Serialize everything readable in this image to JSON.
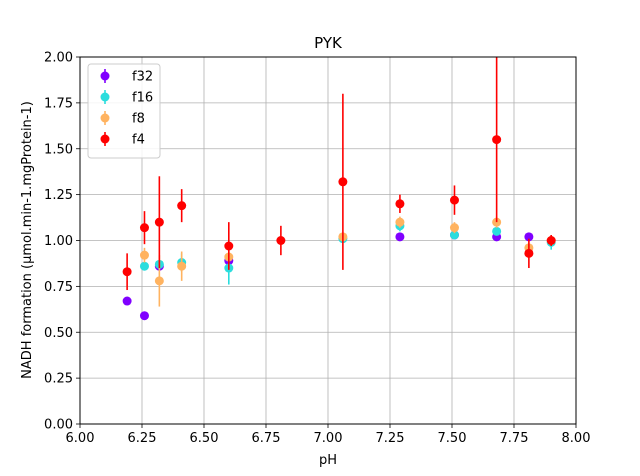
{
  "chart_data": {
    "type": "scatter",
    "title": "PYK",
    "xlabel": "pH",
    "ylabel": "NADH formation (µmol.min-1.mgProtein-1)",
    "xlim": [
      6.0,
      8.0
    ],
    "ylim": [
      0.0,
      2.0
    ],
    "xticks": [
      "6.00",
      "6.25",
      "6.50",
      "6.75",
      "7.00",
      "7.25",
      "7.50",
      "7.75",
      "8.00"
    ],
    "yticks": [
      "0.00",
      "0.25",
      "0.50",
      "0.75",
      "1.00",
      "1.25",
      "1.50",
      "1.75",
      "2.00"
    ],
    "grid": true,
    "legend_position": "upper-left",
    "series": [
      {
        "name": "f32",
        "color": "#8000ff",
        "points": [
          {
            "x": 6.19,
            "y": 0.67,
            "err": 0.0
          },
          {
            "x": 6.26,
            "y": 0.59,
            "err": 0.0
          },
          {
            "x": 6.32,
            "y": 0.86,
            "err": 0.0
          },
          {
            "x": 6.6,
            "y": 0.89,
            "err": 0.0
          },
          {
            "x": 7.29,
            "y": 1.02,
            "err": 0.0
          },
          {
            "x": 7.51,
            "y": 1.03,
            "err": 0.0
          },
          {
            "x": 7.68,
            "y": 1.02,
            "err": 0.0
          },
          {
            "x": 7.81,
            "y": 1.02,
            "err": 0.0
          }
        ]
      },
      {
        "name": "f16",
        "color": "#2adddd",
        "points": [
          {
            "x": 6.26,
            "y": 0.86,
            "err": 0.0
          },
          {
            "x": 6.32,
            "y": 0.87,
            "err": 0.0
          },
          {
            "x": 6.41,
            "y": 0.88,
            "err": 0.05
          },
          {
            "x": 6.6,
            "y": 0.85,
            "err": 0.09
          },
          {
            "x": 7.06,
            "y": 1.01,
            "err": 0.02
          },
          {
            "x": 7.29,
            "y": 1.08,
            "err": 0.03
          },
          {
            "x": 7.51,
            "y": 1.03,
            "err": 0.0
          },
          {
            "x": 7.68,
            "y": 1.05,
            "err": 0.02
          },
          {
            "x": 7.9,
            "y": 0.99,
            "err": 0.04
          }
        ]
      },
      {
        "name": "f8",
        "color": "#ffb360",
        "points": [
          {
            "x": 6.26,
            "y": 0.92,
            "err": 0.04
          },
          {
            "x": 6.32,
            "y": 0.78,
            "err": 0.14
          },
          {
            "x": 6.41,
            "y": 0.86,
            "err": 0.08
          },
          {
            "x": 6.6,
            "y": 0.91,
            "err": 0.02
          },
          {
            "x": 7.06,
            "y": 1.02,
            "err": 0.02
          },
          {
            "x": 7.29,
            "y": 1.1,
            "err": 0.03
          },
          {
            "x": 7.51,
            "y": 1.07,
            "err": 0.03
          },
          {
            "x": 7.68,
            "y": 1.1,
            "err": 0.03
          },
          {
            "x": 7.81,
            "y": 0.96,
            "err": 0.02
          },
          {
            "x": 7.9,
            "y": 1.0,
            "err": 0.03
          }
        ]
      },
      {
        "name": "f4",
        "color": "#ff0000",
        "points": [
          {
            "x": 6.19,
            "y": 0.83,
            "err": 0.1
          },
          {
            "x": 6.26,
            "y": 1.07,
            "err": 0.09
          },
          {
            "x": 6.32,
            "y": 1.1,
            "err": 0.25
          },
          {
            "x": 6.41,
            "y": 1.19,
            "err": 0.09
          },
          {
            "x": 6.6,
            "y": 0.97,
            "err": 0.13
          },
          {
            "x": 6.81,
            "y": 1.0,
            "err": 0.08
          },
          {
            "x": 7.06,
            "y": 1.32,
            "err": 0.48
          },
          {
            "x": 7.29,
            "y": 1.2,
            "err": 0.05
          },
          {
            "x": 7.51,
            "y": 1.22,
            "err": 0.08
          },
          {
            "x": 7.68,
            "y": 1.55,
            "err": 0.45
          },
          {
            "x": 7.81,
            "y": 0.93,
            "err": 0.08
          },
          {
            "x": 7.9,
            "y": 1.0,
            "err": 0.03
          }
        ]
      }
    ]
  }
}
